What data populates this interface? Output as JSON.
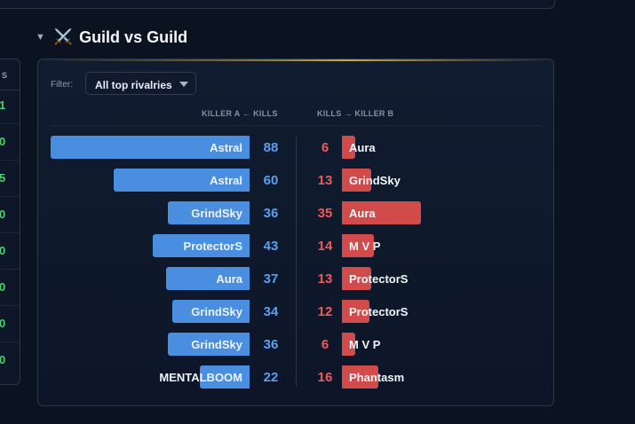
{
  "left_panel": {
    "header": "S",
    "values": [
      "1",
      "0",
      "5",
      "0",
      "0",
      "0",
      "0",
      "0"
    ]
  },
  "section": {
    "title": "Guild vs Guild",
    "icon": "crossed-swords-icon"
  },
  "filter": {
    "label": "Filter:",
    "selected": "All top rivalries"
  },
  "columns": {
    "killer_a": "KILLER A ← KILLS",
    "killer_b": "KILLS → KILLER B"
  },
  "colors": {
    "bar_a": "#4a8ee0",
    "bar_b": "#d24b4b",
    "kills_a": "#5aa0f0",
    "kills_b": "#ef5a5a",
    "accent_gold": "#c9a742"
  },
  "scale_max": 88,
  "rivalries": [
    {
      "a": "Astral",
      "a_kills": 88,
      "b": "Aura",
      "b_kills": 6
    },
    {
      "a": "Astral",
      "a_kills": 60,
      "b": "GrindSky",
      "b_kills": 13
    },
    {
      "a": "GrindSky",
      "a_kills": 36,
      "b": "Aura",
      "b_kills": 35
    },
    {
      "a": "ProtectorS",
      "a_kills": 43,
      "b": "M V P",
      "b_kills": 14
    },
    {
      "a": "Aura",
      "a_kills": 37,
      "b": "ProtectorS",
      "b_kills": 13
    },
    {
      "a": "GrindSky",
      "a_kills": 34,
      "b": "ProtectorS",
      "b_kills": 12
    },
    {
      "a": "GrindSky",
      "a_kills": 36,
      "b": "M V P",
      "b_kills": 6
    },
    {
      "a": "MENTALBOOM",
      "a_kills": 22,
      "b": "Phantasm",
      "b_kills": 16
    }
  ]
}
